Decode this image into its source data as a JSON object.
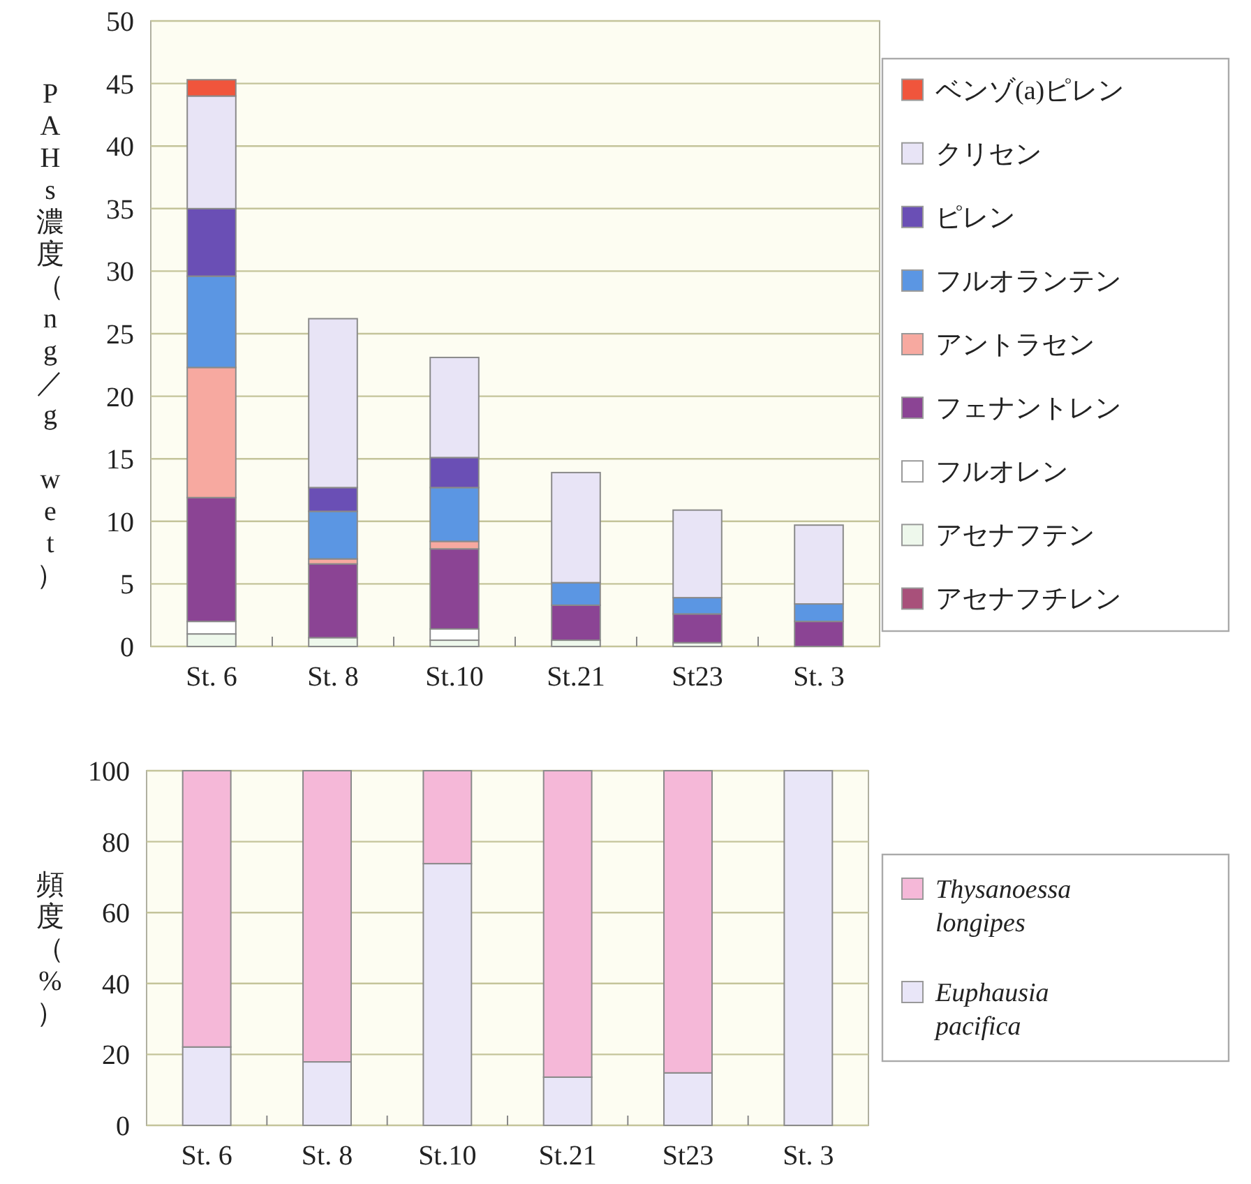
{
  "chart_data": [
    {
      "type": "bar",
      "stacked": true,
      "ylabel": "PAHs濃度（ng／g wet）",
      "categories": [
        "St. 6",
        "St. 8",
        "St.10",
        "St.21",
        "St23",
        "St. 3"
      ],
      "ylim": [
        0,
        50
      ],
      "yticks": [
        0,
        5,
        10,
        15,
        20,
        25,
        30,
        35,
        40,
        45,
        50
      ],
      "grid": "y",
      "legend": "right",
      "series": [
        {
          "name": "アセナフチレン",
          "color": "#a8507a",
          "values": [
            0,
            0,
            0,
            0,
            0,
            0
          ]
        },
        {
          "name": "アセナフテン",
          "color": "#eef8ec",
          "values": [
            1.0,
            0.7,
            0.5,
            0.5,
            0.3,
            0
          ]
        },
        {
          "name": "フルオレン",
          "color": "#ffffff",
          "values": [
            1.0,
            0,
            0.9,
            0,
            0,
            0
          ]
        },
        {
          "name": "フェナントレン",
          "color": "#8b4494",
          "values": [
            9.9,
            5.9,
            6.4,
            2.8,
            2.3,
            2.0
          ]
        },
        {
          "name": "アントラセン",
          "color": "#f7a9a0",
          "values": [
            10.4,
            0.4,
            0.6,
            0,
            0,
            0
          ]
        },
        {
          "name": "フルオランテン",
          "color": "#5b96e3",
          "values": [
            7.3,
            3.8,
            4.3,
            1.8,
            1.3,
            1.4
          ]
        },
        {
          "name": "ピレン",
          "color": "#6a4fb5",
          "values": [
            5.4,
            1.9,
            2.4,
            0,
            0,
            0
          ]
        },
        {
          "name": "クリセン",
          "color": "#e8e4f6",
          "values": [
            9.0,
            13.5,
            8.0,
            8.8,
            7.0,
            6.3
          ]
        },
        {
          "name": "ベンゾ(a)ピレン",
          "color": "#f0553c",
          "values": [
            1.3,
            0,
            0,
            0,
            0,
            0
          ]
        }
      ]
    },
    {
      "type": "bar",
      "stacked": true,
      "ylabel": "頻度（%）",
      "categories": [
        "St. 6",
        "St. 8",
        "St.10",
        "St.21",
        "St23",
        "St. 3"
      ],
      "ylim": [
        0,
        100
      ],
      "yticks": [
        0,
        20,
        40,
        60,
        80,
        100
      ],
      "grid": "y",
      "legend": "right",
      "series": [
        {
          "name": "Euphausia pacifica",
          "color": "#e9e6f8",
          "values": [
            22.1,
            17.9,
            73.8,
            13.6,
            14.8,
            100
          ]
        },
        {
          "name": "Thysanoessa longipes",
          "color": "#f5b8d8",
          "values": [
            77.9,
            82.1,
            26.2,
            86.4,
            85.2,
            0
          ]
        }
      ]
    }
  ]
}
